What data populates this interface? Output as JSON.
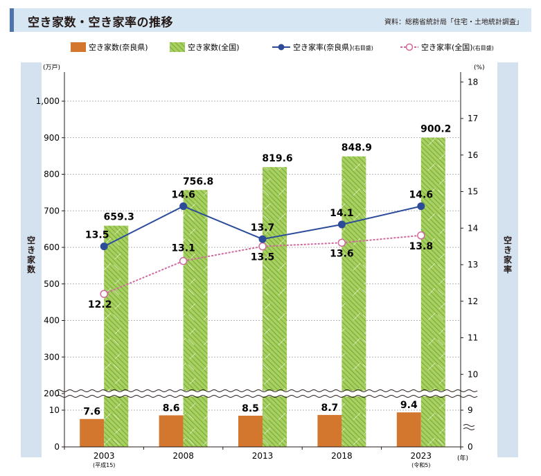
{
  "header": {
    "title": "空き家数・空き家率の推移",
    "source": "資料：総務省統計局「住宅・土地統計調査」"
  },
  "side_labels": {
    "left_chars": [
      "空",
      "き",
      "家",
      "数"
    ],
    "right_chars": [
      "空",
      "き",
      "家",
      "率"
    ]
  },
  "colors": {
    "nara_bar": "#d4772e",
    "national_bar": "#8cbf3f",
    "nara_line": "#2c4c9a",
    "national_line": "#d0689e",
    "header_bg": "#d7e6f3",
    "header_accent": "#4f74a8"
  },
  "chart_data": {
    "type": "bar",
    "categories": [
      "2003",
      "2008",
      "2013",
      "2018",
      "2023"
    ],
    "category_sublabels": [
      "(平成15)",
      "",
      "",
      "",
      "(令和5)"
    ],
    "x_unit": "(年)",
    "left_axis": {
      "unit": "(万戸)",
      "ticks": [
        0,
        10,
        200,
        300,
        400,
        500,
        600,
        700,
        800,
        900,
        1000
      ],
      "tick_labels": [
        "0",
        "10",
        "200",
        "300",
        "400",
        "500",
        "600",
        "700",
        "800",
        "900",
        "1,000"
      ],
      "break": [
        10,
        200
      ]
    },
    "right_axis": {
      "unit": "(%)",
      "ticks": [
        0,
        9,
        10,
        11,
        12,
        13,
        14,
        15,
        16,
        17,
        18
      ],
      "tick_labels": [
        "0",
        "9",
        "10",
        "11",
        "12",
        "13",
        "14",
        "15",
        "16",
        "17",
        "18"
      ],
      "break": [
        0,
        9
      ]
    },
    "series": [
      {
        "name": "空き家数(奈良県)",
        "type": "bar",
        "axis": "left",
        "values": [
          7.6,
          8.6,
          8.5,
          8.7,
          9.4
        ],
        "labels": [
          "7.6",
          "8.6",
          "8.5",
          "8.7",
          "9.4"
        ]
      },
      {
        "name": "空き家数(全国)",
        "type": "bar",
        "axis": "left",
        "values": [
          659.3,
          756.8,
          819.6,
          848.9,
          900.2
        ],
        "labels": [
          "659.3",
          "756.8",
          "819.6",
          "848.9",
          "900.2"
        ]
      },
      {
        "name": "空き家率(奈良県)",
        "type": "line",
        "axis": "right",
        "values": [
          13.5,
          14.6,
          13.7,
          14.1,
          14.6
        ],
        "labels": [
          "13.5",
          "14.6",
          "13.7",
          "14.1",
          "14.6"
        ]
      },
      {
        "name": "空き家率(全国)",
        "type": "line",
        "axis": "right",
        "values": [
          12.2,
          13.1,
          13.5,
          13.6,
          13.8
        ],
        "labels": [
          "12.2",
          "13.1",
          "13.5",
          "13.6",
          "13.8"
        ]
      }
    ],
    "legend": {
      "placement": "top",
      "items": [
        "空き家数(奈良県)",
        "空き家数(全国)",
        "空き家率(奈良県)",
        "空き家率(全国)"
      ],
      "suffixes": [
        "",
        "",
        "(右目盛)",
        "(右目盛)"
      ]
    },
    "grid": true
  }
}
